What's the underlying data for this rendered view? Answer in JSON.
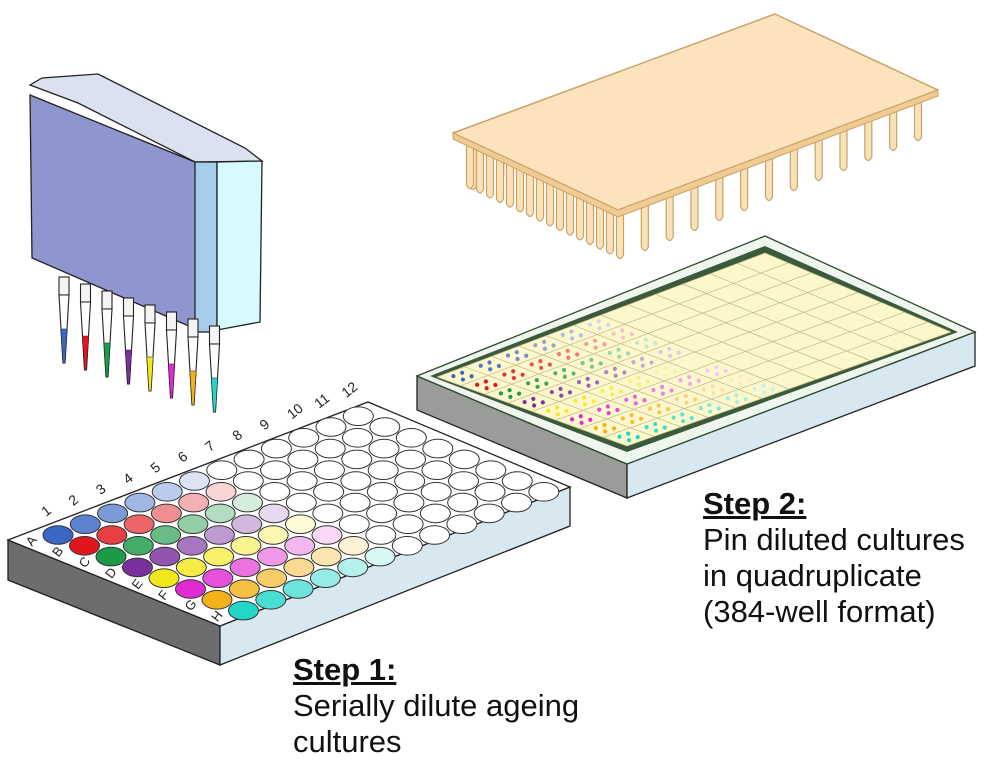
{
  "steps": [
    {
      "heading": "Step 1:",
      "body_lines": [
        "Serially dilute ageing",
        "cultures"
      ]
    },
    {
      "heading": "Step 2:",
      "body_lines": [
        "Pin diluted cultures",
        "in quadruplicate",
        "(384-well format)"
      ]
    }
  ],
  "plate96": {
    "column_labels": [
      "1",
      "2",
      "3",
      "4",
      "5",
      "6",
      "7",
      "8",
      "9",
      "10",
      "11",
      "12"
    ],
    "row_labels": [
      "A",
      "B",
      "C",
      "D",
      "E",
      "F",
      "G",
      "H"
    ]
  },
  "culture_colors": [
    "#3a66c4",
    "#e0161c",
    "#1b9a48",
    "#7a2f9f",
    "#f3e81c",
    "#e22ad2",
    "#f4b21a",
    "#22d6c8"
  ],
  "colors": {
    "pipette_face": "#8f95cf",
    "pin_tool": "#fde3bd",
    "plate_grid": "#fdf8cc",
    "plate_side": "#d8e8f0"
  }
}
